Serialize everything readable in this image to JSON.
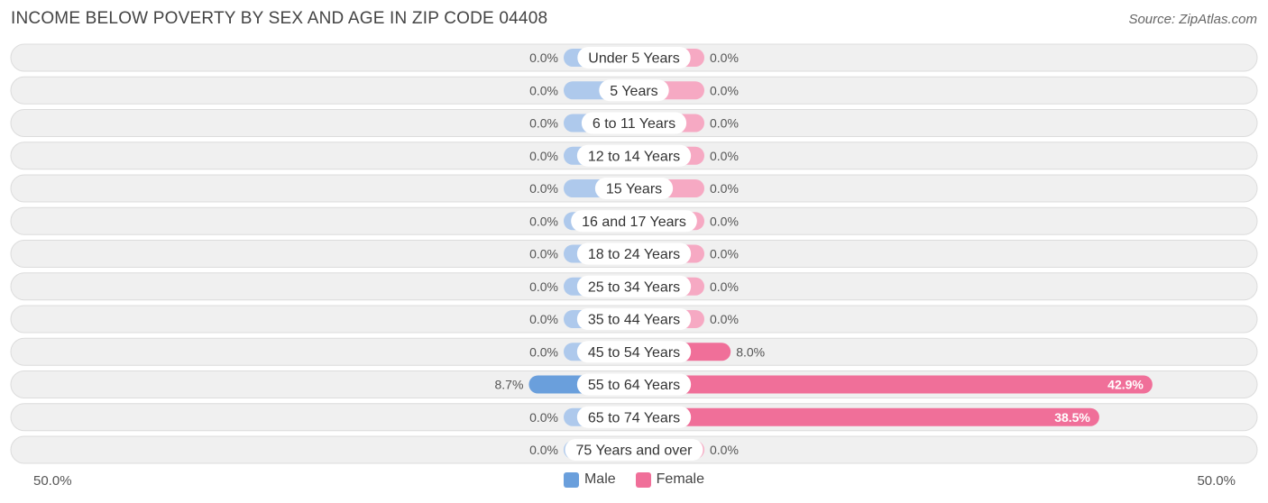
{
  "header": {
    "title": "INCOME BELOW POVERTY BY SEX AND AGE IN ZIP CODE 04408",
    "source": "Source: ZipAtlas.com"
  },
  "axis": {
    "left_label": "50.0%",
    "right_label": "50.0%"
  },
  "legend": {
    "male_label": "Male",
    "female_label": "Female"
  },
  "colors": {
    "male_small": "#aec9ec",
    "male_large": "#6a9fdc",
    "female_small": "#f6a9c3",
    "female_large": "#f06f99",
    "row_bg": "#f0f0f0",
    "row_border": "#dcdcdc"
  },
  "chart_data": {
    "type": "bar",
    "orientation": "horizontal-diverging",
    "categories": [
      "Under 5 Years",
      "5 Years",
      "6 to 11 Years",
      "12 to 14 Years",
      "15 Years",
      "16 and 17 Years",
      "18 to 24 Years",
      "25 to 34 Years",
      "35 to 44 Years",
      "45 to 54 Years",
      "55 to 64 Years",
      "65 to 74 Years",
      "75 Years and over"
    ],
    "series": [
      {
        "name": "Male",
        "values": [
          0.0,
          0.0,
          0.0,
          0.0,
          0.0,
          0.0,
          0.0,
          0.0,
          0.0,
          0.0,
          8.7,
          0.0,
          0.0
        ],
        "labels": [
          "0.0%",
          "0.0%",
          "0.0%",
          "0.0%",
          "0.0%",
          "0.0%",
          "0.0%",
          "0.0%",
          "0.0%",
          "0.0%",
          "8.7%",
          "0.0%",
          "0.0%"
        ]
      },
      {
        "name": "Female",
        "values": [
          0.0,
          0.0,
          0.0,
          0.0,
          0.0,
          0.0,
          0.0,
          0.0,
          0.0,
          8.0,
          42.9,
          38.5,
          0.0
        ],
        "labels": [
          "0.0%",
          "0.0%",
          "0.0%",
          "0.0%",
          "0.0%",
          "0.0%",
          "0.0%",
          "0.0%",
          "0.0%",
          "8.0%",
          "42.9%",
          "38.5%",
          "0.0%"
        ]
      }
    ],
    "xlim": [
      -50,
      50
    ],
    "legend_position": "bottom-center",
    "grid": false
  }
}
